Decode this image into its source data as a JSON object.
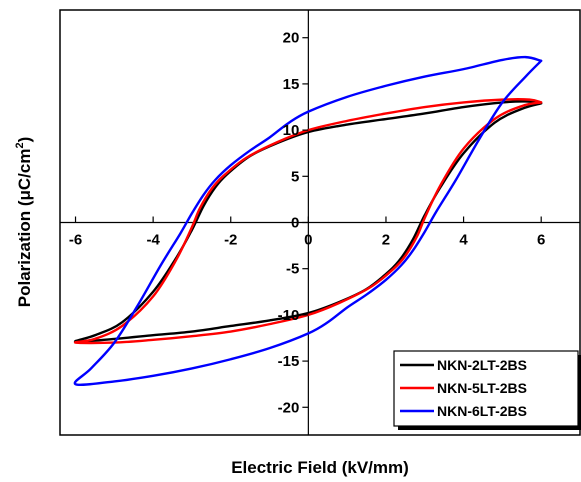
{
  "chart_data": {
    "type": "line",
    "title": "",
    "xlabel": "Electric Field (kV/mm)",
    "ylabel_main": "Polarization (",
    "ylabel_unit": "μC/cm",
    "ylabel_sup": "2",
    "ylabel_close": ")",
    "xlim": [
      -6.4,
      7.0
    ],
    "ylim": [
      -23,
      23
    ],
    "xticks": [
      -6,
      -4,
      -2,
      0,
      2,
      4,
      6
    ],
    "yticks": [
      -20,
      -15,
      -10,
      -5,
      0,
      5,
      10,
      15,
      20
    ],
    "xtick_labels": [
      "-6",
      "-4",
      "-2",
      "0",
      "2",
      "4",
      "6"
    ],
    "ytick_labels": [
      "-20",
      "-15",
      "-10",
      "-5",
      "0",
      "5",
      "10",
      "15",
      "20"
    ],
    "grid": false,
    "legend_position": "bottom-right",
    "series": [
      {
        "name": "NKN-2LT-2BS",
        "color": "#000000",
        "x": [
          6.0,
          5.5,
          4.8,
          4.0,
          3.4,
          3.0,
          2.7,
          2.4,
          2.1,
          1.5,
          0.8,
          0.0,
          -1.0,
          -2.0,
          -3.0,
          -4.0,
          -5.0,
          -6.0,
          -5.5,
          -4.8,
          -4.0,
          -3.4,
          -3.0,
          -2.7,
          -2.4,
          -2.1,
          -1.5,
          -0.8,
          0.0,
          1.0,
          2.0,
          3.0,
          4.0,
          5.0,
          5.6,
          6.0
        ],
        "y": [
          12.9,
          12.3,
          10.8,
          7.5,
          3.8,
          0.8,
          -1.8,
          -3.8,
          -5.2,
          -7.2,
          -8.6,
          -9.8,
          -10.6,
          -11.2,
          -11.8,
          -12.2,
          -12.6,
          -12.9,
          -12.2,
          -10.8,
          -7.5,
          -3.8,
          -0.8,
          1.8,
          3.8,
          5.2,
          7.2,
          8.6,
          9.8,
          10.6,
          11.2,
          11.8,
          12.5,
          13.0,
          13.1,
          12.9
        ]
      },
      {
        "name": "NKN-5LT-2BS",
        "color": "#ff0000",
        "x": [
          6.0,
          5.5,
          4.8,
          4.0,
          3.4,
          3.0,
          2.8,
          2.5,
          2.2,
          1.6,
          0.8,
          0.0,
          -1.0,
          -2.0,
          -3.0,
          -4.0,
          -5.0,
          -6.0,
          -5.5,
          -4.8,
          -4.0,
          -3.4,
          -3.0,
          -2.8,
          -2.5,
          -2.2,
          -1.6,
          -0.8,
          0.0,
          1.0,
          2.0,
          3.0,
          4.0,
          5.0,
          5.7,
          6.0
        ],
        "y": [
          13.0,
          12.6,
          11.2,
          8.0,
          4.0,
          0.5,
          -1.5,
          -3.6,
          -5.0,
          -7.0,
          -8.7,
          -10.0,
          -11.0,
          -11.8,
          -12.3,
          -12.7,
          -13.0,
          -13.0,
          -12.6,
          -11.2,
          -8.0,
          -4.0,
          -0.5,
          1.5,
          3.6,
          5.0,
          7.0,
          8.7,
          10.0,
          11.0,
          11.8,
          12.5,
          13.0,
          13.3,
          13.3,
          13.0
        ]
      },
      {
        "name": "NKN-6LT-2BS",
        "color": "#0000ff",
        "x": [
          6.0,
          5.6,
          5.0,
          4.4,
          3.8,
          3.3,
          3.0,
          2.7,
          2.4,
          2.0,
          1.5,
          1.0,
          0.5,
          0.0,
          -1.0,
          -2.0,
          -3.0,
          -4.0,
          -5.0,
          -6.0,
          -5.6,
          -5.0,
          -4.4,
          -3.8,
          -3.3,
          -3.0,
          -2.7,
          -2.4,
          -2.0,
          -1.5,
          -1.0,
          -0.5,
          0.0,
          1.0,
          2.0,
          3.0,
          4.0,
          5.0,
          5.6,
          6.0
        ],
        "y": [
          17.5,
          15.8,
          13.0,
          9.0,
          4.6,
          1.2,
          -1.0,
          -3.0,
          -4.6,
          -6.2,
          -7.8,
          -9.2,
          -10.8,
          -12.0,
          -13.6,
          -14.8,
          -15.8,
          -16.6,
          -17.2,
          -17.5,
          -15.8,
          -13.0,
          -9.0,
          -4.6,
          -1.2,
          1.0,
          3.0,
          4.6,
          6.2,
          7.8,
          9.2,
          10.8,
          12.0,
          13.6,
          14.8,
          15.8,
          16.6,
          17.6,
          17.9,
          17.5
        ]
      }
    ]
  }
}
